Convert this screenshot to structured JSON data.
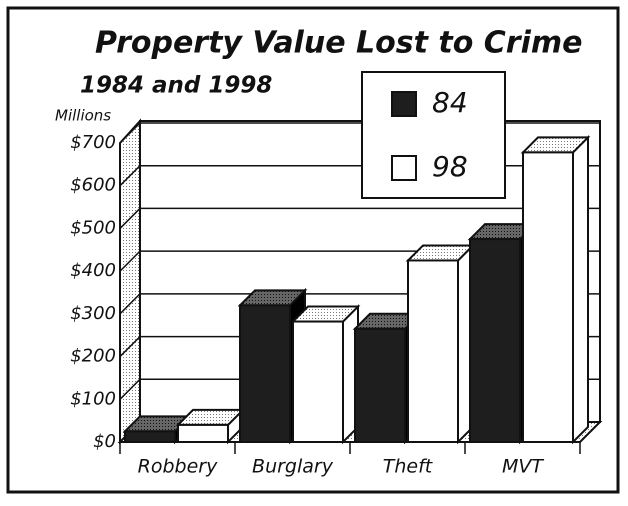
{
  "chart_data": {
    "type": "bar3d",
    "title": "Property Value Lost to Crime",
    "subtitle": "1984 and 1998",
    "y_label": "Millions",
    "categories": [
      "Robbery",
      "Burglary",
      "Theft",
      "MVT"
    ],
    "series": [
      {
        "name": "84",
        "color": "#1e1e1e",
        "values": [
          25,
          320,
          265,
          475
        ]
      },
      {
        "name": "98",
        "color": "#ffffff",
        "values": [
          40,
          282,
          425,
          678
        ]
      }
    ],
    "ylim": [
      0,
      700
    ],
    "yticks": [
      {
        "value": 0,
        "label": "$0"
      },
      {
        "value": 100,
        "label": "$100"
      },
      {
        "value": 200,
        "label": "$200"
      },
      {
        "value": 300,
        "label": "$300"
      },
      {
        "value": 400,
        "label": "$400"
      },
      {
        "value": 500,
        "label": "$500"
      },
      {
        "value": 600,
        "label": "$600"
      },
      {
        "value": 700,
        "label": "$700"
      }
    ],
    "grid": true
  }
}
